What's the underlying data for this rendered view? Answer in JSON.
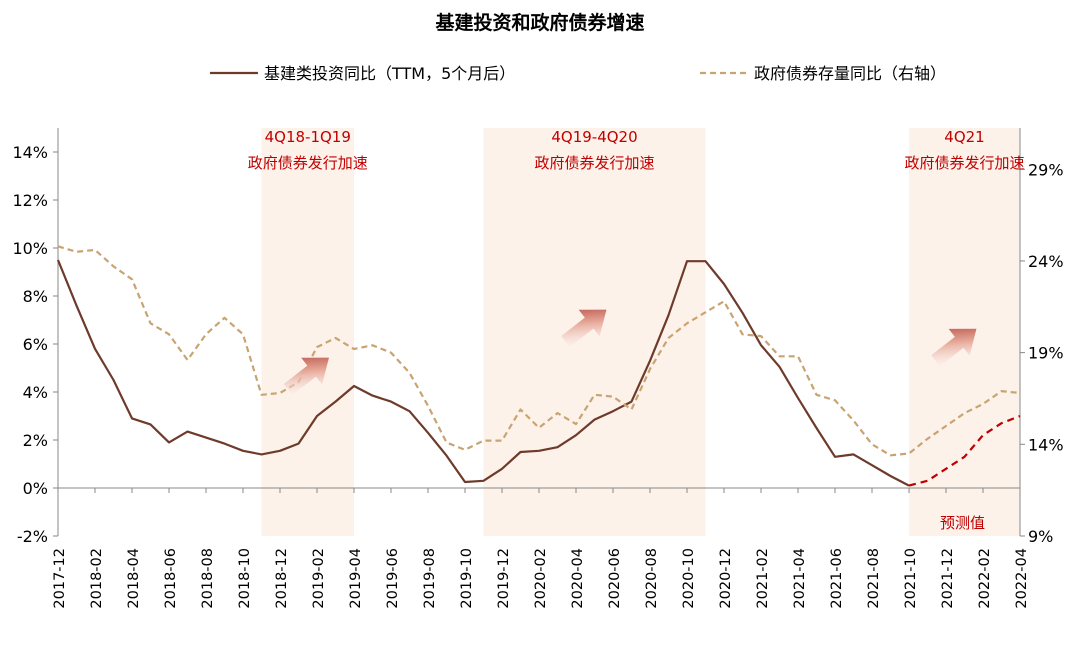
{
  "chart_data": {
    "type": "line",
    "title": "基建投资和政府债券增速",
    "x": [
      "2017-12",
      "2018-01",
      "2018-02",
      "2018-03",
      "2018-04",
      "2018-05",
      "2018-06",
      "2018-07",
      "2018-08",
      "2018-09",
      "2018-10",
      "2018-11",
      "2018-12",
      "2019-01",
      "2019-02",
      "2019-03",
      "2019-04",
      "2019-05",
      "2019-06",
      "2019-07",
      "2019-08",
      "2019-09",
      "2019-10",
      "2019-11",
      "2019-12",
      "2020-01",
      "2020-02",
      "2020-03",
      "2020-04",
      "2020-05",
      "2020-06",
      "2020-07",
      "2020-08",
      "2020-09",
      "2020-10",
      "2020-11",
      "2020-12",
      "2021-01",
      "2021-02",
      "2021-03",
      "2021-04",
      "2021-05",
      "2021-06",
      "2021-07",
      "2021-08",
      "2021-09",
      "2021-10",
      "2021-11",
      "2021-12",
      "2022-01",
      "2022-02",
      "2022-03",
      "2022-04"
    ],
    "x_tick_labels": [
      "2017-12",
      "2018-02",
      "2018-04",
      "2018-06",
      "2018-08",
      "2018-10",
      "2018-12",
      "2019-02",
      "2019-04",
      "2019-06",
      "2019-08",
      "2019-10",
      "2019-12",
      "2020-02",
      "2020-04",
      "2020-06",
      "2020-08",
      "2020-10",
      "2020-12",
      "2021-02",
      "2021-04",
      "2021-06",
      "2021-08",
      "2021-10",
      "2021-12",
      "2022-02",
      "2022-04"
    ],
    "y_left": {
      "ylim": [
        -2,
        15
      ],
      "ticks": [
        "-2%",
        "0%",
        "2%",
        "4%",
        "6%",
        "8%",
        "10%",
        "12%",
        "14%"
      ]
    },
    "y_right": {
      "ylim": [
        9,
        31.25
      ],
      "ticks": [
        "9%",
        "14%",
        "19%",
        "24%",
        "29%"
      ]
    },
    "series": [
      {
        "name": "基建类投资同比（TTM，5个月后）",
        "axis": "left",
        "color": "#6e3b2b",
        "style": "solid",
        "values": [
          9.5,
          7.6,
          5.8,
          4.5,
          2.9,
          2.65,
          1.9,
          2.35,
          2.1,
          1.85,
          1.55,
          1.4,
          1.55,
          1.85,
          3.0,
          3.6,
          4.25,
          3.85,
          3.6,
          3.2,
          2.3,
          1.35,
          0.25,
          0.3,
          0.8,
          1.5,
          1.55,
          1.7,
          2.2,
          2.85,
          3.2,
          3.6,
          5.3,
          7.2,
          9.45,
          9.45,
          8.5,
          7.3,
          5.95,
          5.05,
          3.75,
          2.5,
          1.3,
          1.4,
          0.95,
          0.5,
          0.1,
          null,
          null,
          null,
          null,
          null,
          null
        ]
      },
      {
        "name": "预测值",
        "axis": "left",
        "color": "#c00000",
        "style": "dashed",
        "values": [
          null,
          null,
          null,
          null,
          null,
          null,
          null,
          null,
          null,
          null,
          null,
          null,
          null,
          null,
          null,
          null,
          null,
          null,
          null,
          null,
          null,
          null,
          null,
          null,
          null,
          null,
          null,
          null,
          null,
          null,
          null,
          null,
          null,
          null,
          null,
          null,
          null,
          null,
          null,
          null,
          null,
          null,
          null,
          null,
          null,
          null,
          0.1,
          0.3,
          0.8,
          1.3,
          2.2,
          2.7,
          3.0
        ]
      },
      {
        "name": "政府债券存量同比（右轴）",
        "axis": "right",
        "color": "#c8a472",
        "style": "dashed",
        "values": [
          24.8,
          24.5,
          24.6,
          23.7,
          23.0,
          20.6,
          20.0,
          18.6,
          20.0,
          20.9,
          20.0,
          16.7,
          16.8,
          17.4,
          19.3,
          19.8,
          19.2,
          19.4,
          19.0,
          17.9,
          16.1,
          14.1,
          13.7,
          14.2,
          14.2,
          15.9,
          14.9,
          15.7,
          15.1,
          16.7,
          16.6,
          15.9,
          18.1,
          19.8,
          20.6,
          21.2,
          21.8,
          20.0,
          19.9,
          18.8,
          18.8,
          16.7,
          16.4,
          15.3,
          14.0,
          13.4,
          13.5,
          14.3,
          15.0,
          15.7,
          16.2,
          16.9,
          16.8
        ]
      }
    ],
    "shaded_periods": [
      {
        "title": "4Q18-1Q19",
        "subtitle": "政府债券发行加速",
        "start": "2018-11",
        "end": "2019-04"
      },
      {
        "title": "4Q19-4Q20",
        "subtitle": "政府债券发行加速",
        "start": "2019-11",
        "end": "2020-11"
      },
      {
        "title": "4Q21",
        "subtitle": "政府债券发行加速",
        "start": "2021-10",
        "end": "2022-04"
      }
    ],
    "forecast_label": "预测值",
    "legend_position": "top-center",
    "grid": false,
    "colors": {
      "shade": "#fdf2ea",
      "annotation": "#c00000",
      "arrow": "#b23a2e"
    }
  }
}
